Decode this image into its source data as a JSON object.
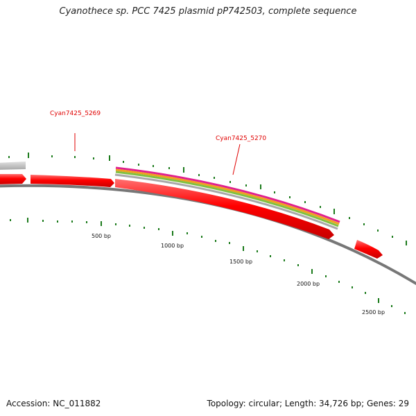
{
  "title": "Cyanothece sp. PCC 7425 plasmid pP742503, complete sequence",
  "footer": {
    "accession": "Accession: NC_011882",
    "summary": "Topology: circular; Length: 34,726 bp; Genes: 29"
  },
  "genes": [
    {
      "label": "Cyan7425_5269"
    },
    {
      "label": "Cyan7425_5270"
    }
  ],
  "ruler": {
    "labels": [
      "500 bp",
      "1000 bp",
      "1500 bp",
      "2000 bp",
      "2500 bp"
    ]
  },
  "colors": {
    "cds": "#ff0000",
    "backbone": "#777777",
    "other_feature": "#b8b8b8",
    "tick": "#1a7a1a",
    "label": "#e00000",
    "band_magenta": "#e0208e",
    "band_orange": "#f0a020",
    "band_green": "#80c040",
    "band_gray": "#a8a8a8"
  }
}
